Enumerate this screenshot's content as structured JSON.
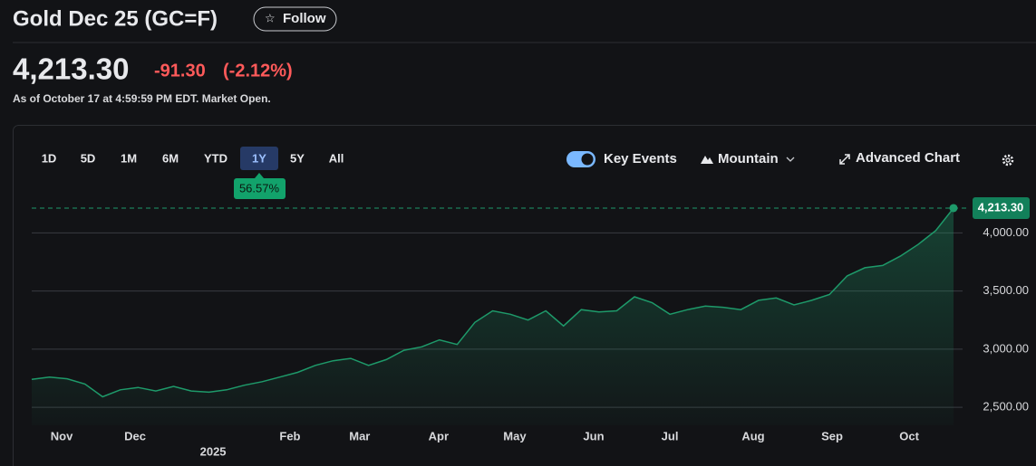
{
  "header": {
    "title": "Gold Dec 25 (GC=F)",
    "follow": "Follow",
    "price": "4,213.30",
    "change": "-91.30",
    "change_pct": "(-2.12%)",
    "as_of": "As of October 17 at 4:59:59 PM EDT. Market Open."
  },
  "toolbar": {
    "ranges": [
      "1D",
      "5D",
      "1M",
      "6M",
      "YTD",
      "1Y",
      "5Y",
      "All"
    ],
    "selected_index": 5,
    "range_change": "56.57%",
    "key_events": "Key Events",
    "chart_style": "Mountain",
    "advanced": "Advanced Chart"
  },
  "chart_data": {
    "type": "area",
    "series": [
      {
        "name": "GC=F",
        "color": "#1e9a6a",
        "values": [
          2740,
          2760,
          2745,
          2700,
          2590,
          2650,
          2670,
          2640,
          2680,
          2640,
          2630,
          2650,
          2690,
          2720,
          2760,
          2800,
          2860,
          2900,
          2920,
          2860,
          2910,
          2990,
          3020,
          3080,
          3040,
          3230,
          3330,
          3300,
          3250,
          3330,
          3200,
          3340,
          3320,
          3330,
          3450,
          3400,
          3300,
          3340,
          3370,
          3360,
          3340,
          3420,
          3440,
          3380,
          3420,
          3470,
          3630,
          3700,
          3720,
          3800,
          3900,
          4020,
          4213.3
        ]
      }
    ],
    "xlim": [
      0,
      52
    ],
    "xticks": [
      {
        "value": 1.69,
        "label": "Nov"
      },
      {
        "value": 5.83,
        "label": "Dec"
      },
      {
        "value": 14.57,
        "label": "Feb"
      },
      {
        "value": 18.5,
        "label": "Mar"
      },
      {
        "value": 22.95,
        "label": "Apr"
      },
      {
        "value": 27.25,
        "label": "May"
      },
      {
        "value": 31.7,
        "label": "Jun"
      },
      {
        "value": 36,
        "label": "Jul"
      },
      {
        "value": 40.7,
        "label": "Aug"
      },
      {
        "value": 45.15,
        "label": "Sep"
      },
      {
        "value": 49.5,
        "label": "Oct"
      }
    ],
    "year_tick": {
      "value": 10.23,
      "label": "2025"
    },
    "ylim": [
      2345,
      4330
    ],
    "yticks": [
      {
        "value": 2500,
        "label": "2,500.00"
      },
      {
        "value": 3000,
        "label": "3,000.00"
      },
      {
        "value": 3500,
        "label": "3,500.00"
      },
      {
        "value": 4000,
        "label": "4,000.00"
      }
    ],
    "last": {
      "value": 4213.3,
      "label": "4,213.30"
    },
    "grid": true
  }
}
